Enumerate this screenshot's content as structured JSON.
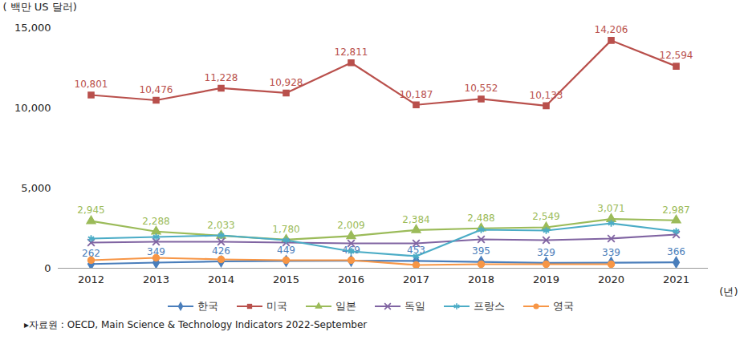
{
  "chart_data": {
    "type": "line",
    "y_label": "( 백만 US 달러)",
    "x_label": "(년)",
    "caption": "▸자료원 : OECD, Main Science & Technology Indicators 2022-September",
    "categories": [
      "2012",
      "2013",
      "2014",
      "2015",
      "2016",
      "2017",
      "2018",
      "2019",
      "2020",
      "2021"
    ],
    "ylim": [
      0,
      15000
    ],
    "yticks": [
      0,
      {
        "value": 5000,
        "label": "5,000"
      },
      {
        "value": 10000,
        "label": "10,000"
      },
      {
        "value": 15000,
        "label": "15,000"
      }
    ],
    "grid": false,
    "legend": "bottom",
    "series": [
      {
        "name": "한국",
        "color": "#4a7ebb",
        "marker": "diamond",
        "data_labels": true,
        "values": [
          262,
          349,
          426,
          449,
          469,
          453,
          395,
          329,
          339,
          366
        ]
      },
      {
        "name": "미국",
        "color": "#b9504c",
        "marker": "square",
        "data_labels": true,
        "values": [
          10801,
          10476,
          11228,
          10928,
          12811,
          10187,
          10552,
          10133,
          14206,
          12594
        ],
        "value_labels": [
          "10,801",
          "10,476",
          "11,228",
          "10,928",
          "12,811",
          "10,187",
          "10,552",
          "10,133",
          "14,206",
          "12,594"
        ]
      },
      {
        "name": "일본",
        "color": "#9bbb59",
        "marker": "triangle",
        "data_labels": true,
        "values": [
          2945,
          2288,
          2033,
          1780,
          2009,
          2384,
          2488,
          2549,
          3071,
          2987
        ],
        "value_labels": [
          "2,945",
          "2,288",
          "2,033",
          "1,780",
          "2,009",
          "2,384",
          "2,488",
          "2,549",
          "3,071",
          "2,987"
        ]
      },
      {
        "name": "독일",
        "color": "#8064a2",
        "marker": "x",
        "data_labels": false,
        "values": [
          1600,
          1650,
          1650,
          1600,
          1550,
          1550,
          1800,
          1750,
          1850,
          2100
        ]
      },
      {
        "name": "프랑스",
        "color": "#4bacc6",
        "marker": "star",
        "data_labels": false,
        "values": [
          1850,
          1950,
          2050,
          1750,
          1050,
          750,
          2400,
          2350,
          2800,
          2300
        ]
      },
      {
        "name": "영국",
        "color": "#f79646",
        "marker": "circle",
        "data_labels": false,
        "values": [
          500,
          650,
          550,
          500,
          500,
          200,
          250,
          250,
          250,
          null
        ]
      }
    ]
  }
}
